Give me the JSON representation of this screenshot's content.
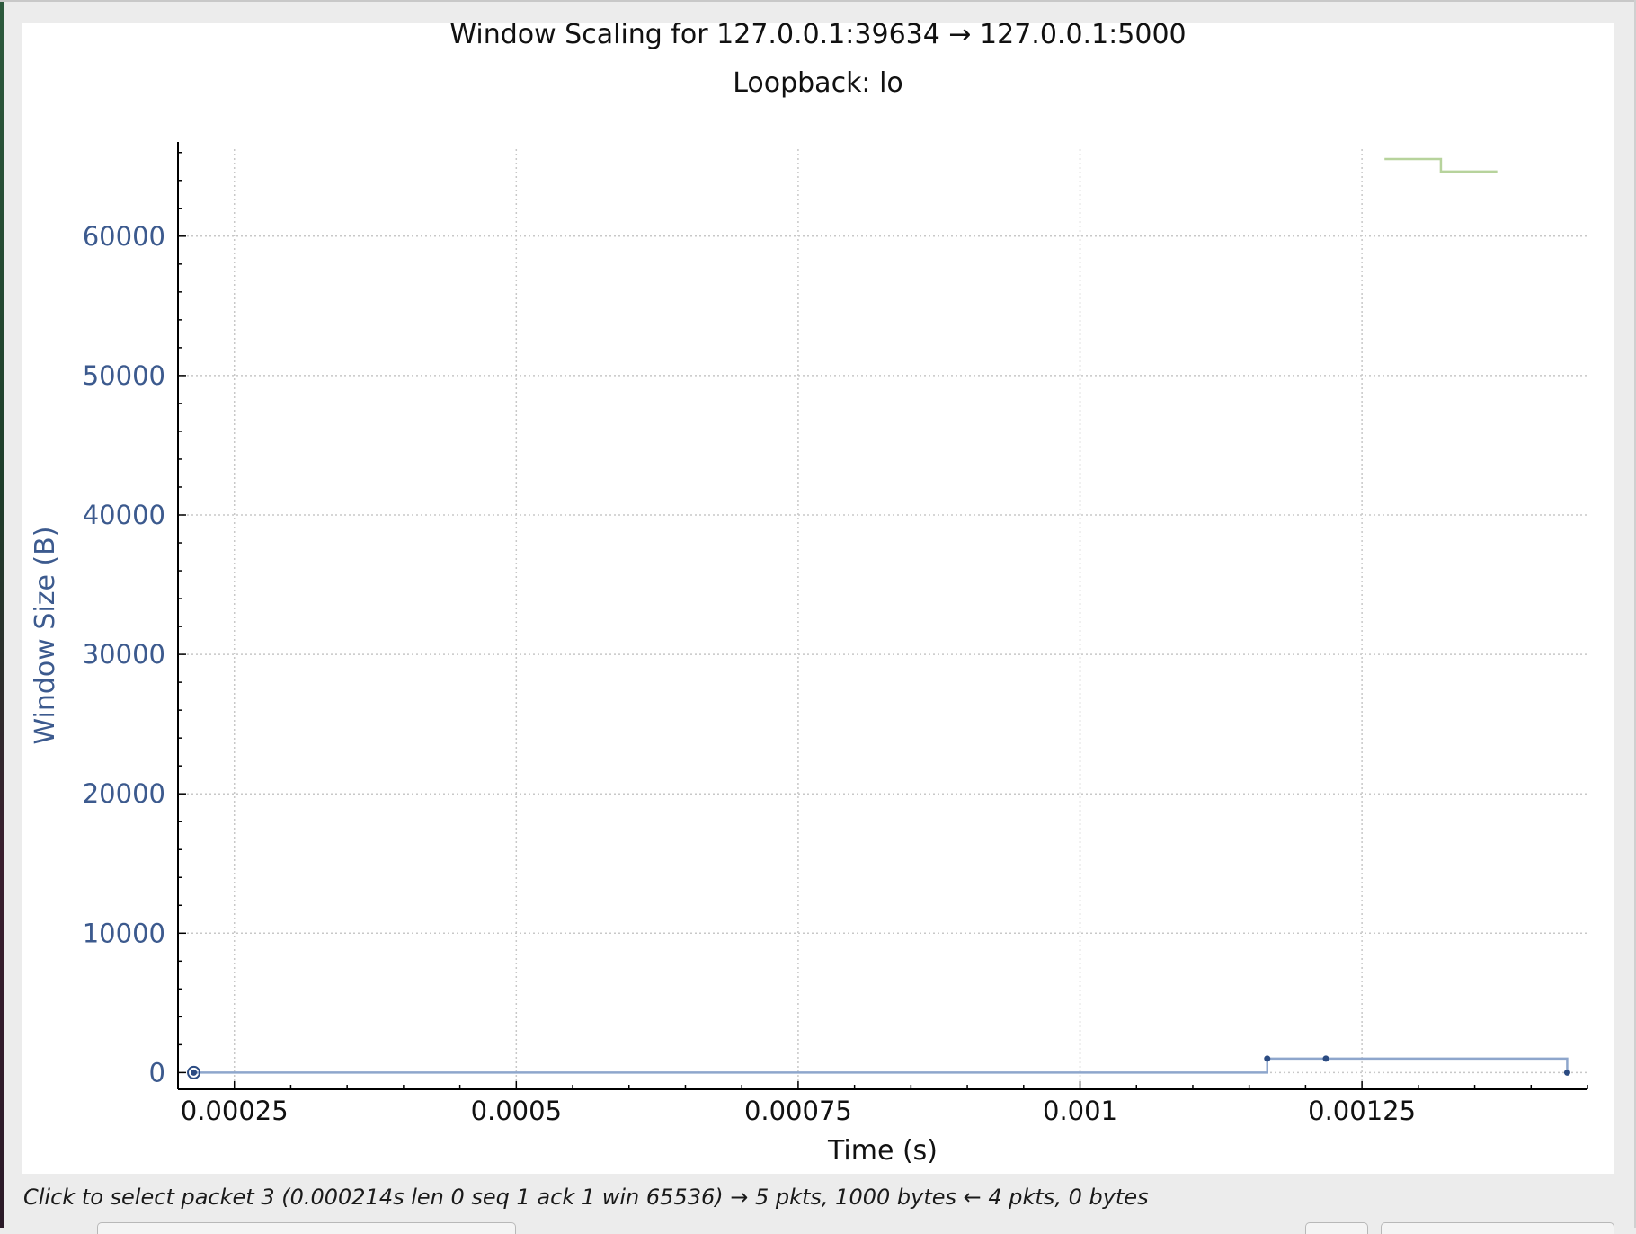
{
  "window": {
    "status": "Click to select packet 3 (0.000214s len 0 seq 1 ack 1 win 65536) → 5 pkts, 1000 bytes ← 4 pkts, 0 bytes"
  },
  "colors": {
    "axis_text": "#3c5a8e",
    "forward_series": "#8ea6cc",
    "forward_marker": "#2b4b82",
    "reverse_series": "#b7d39c",
    "grid": "#c8c8c8"
  },
  "chart_data": {
    "type": "line",
    "title": "Window Scaling for 127.0.0.1:39634 → 127.0.0.1:5000",
    "subtitle": "Loopback: lo",
    "xlabel": "Time (s)",
    "ylabel": "Window Size (B)",
    "xlim": [
      0.0002,
      0.00145
    ],
    "ylim": [
      -1200,
      66500
    ],
    "grid": true,
    "x_ticks": [
      {
        "value": 0.00025,
        "label": "0.00025"
      },
      {
        "value": 0.0005,
        "label": "0.0005"
      },
      {
        "value": 0.00075,
        "label": "0.00075"
      },
      {
        "value": 0.001,
        "label": "0.001"
      },
      {
        "value": 0.00125,
        "label": "0.00125"
      }
    ],
    "y_ticks": [
      {
        "value": 0,
        "label": "0"
      },
      {
        "value": 10000,
        "label": "10000"
      },
      {
        "value": 20000,
        "label": "20000"
      },
      {
        "value": 30000,
        "label": "30000"
      },
      {
        "value": 40000,
        "label": "40000"
      },
      {
        "value": 50000,
        "label": "50000"
      },
      {
        "value": 60000,
        "label": "60000"
      }
    ],
    "series": [
      {
        "style": "step",
        "points": [
          {
            "x": 0.000214,
            "y": 0
          },
          {
            "x": 0.001166,
            "y": 1000
          },
          {
            "x": 0.001218,
            "y": 1000
          },
          {
            "x": 0.001432,
            "y": 0
          }
        ],
        "selected_x": 0.000214
      },
      {
        "style": "step",
        "points": [
          {
            "x": 0.00127,
            "y": 65536
          },
          {
            "x": 0.00132,
            "y": 64640
          },
          {
            "x": 0.00137,
            "y": 64640
          }
        ]
      }
    ]
  }
}
